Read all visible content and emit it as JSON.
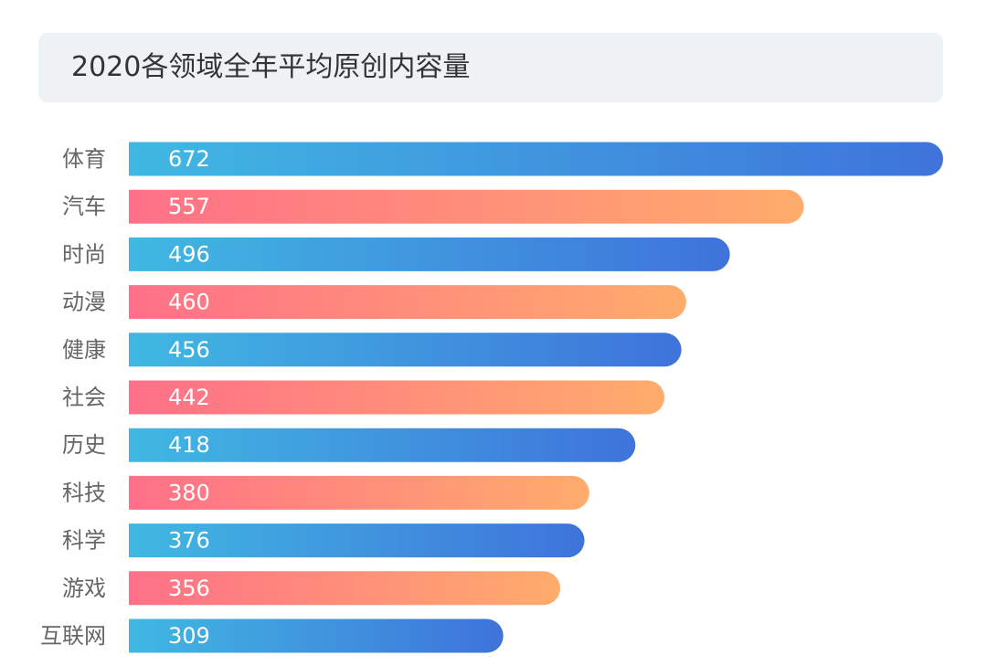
{
  "title": "2020各领域全年平均原创内容量",
  "colors": {
    "blue_start": "#40b8e2",
    "blue_end": "#3f73db",
    "pink_start": "#ff7088",
    "pink_end": "#ffac6c",
    "label_color": "#666666",
    "panel_bg": "#eef2f5"
  },
  "chart_data": {
    "type": "bar",
    "orientation": "horizontal",
    "title": "2020各领域全年平均原创内容量",
    "categories": [
      "体育",
      "汽车",
      "时尚",
      "动漫",
      "健康",
      "社会",
      "历史",
      "科技",
      "科学",
      "游戏",
      "互联网"
    ],
    "values": [
      672,
      557,
      496,
      460,
      456,
      442,
      418,
      380,
      376,
      356,
      309
    ],
    "bar_styles": [
      "blue",
      "pink",
      "blue",
      "pink",
      "blue",
      "pink",
      "blue",
      "pink",
      "blue",
      "pink",
      "blue"
    ],
    "xlabel": "",
    "ylabel": "",
    "xlim": [
      0,
      672
    ],
    "grid": false,
    "legend": "none",
    "data_labels": "inside-left"
  }
}
